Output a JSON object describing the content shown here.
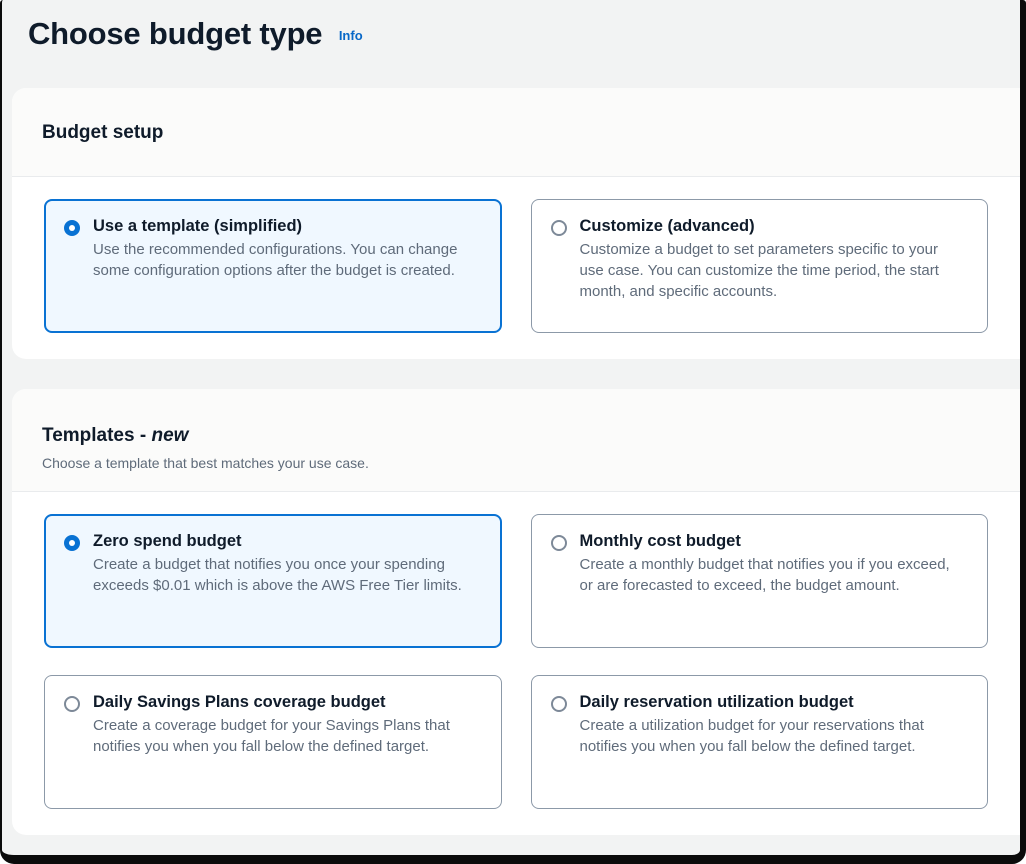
{
  "page": {
    "title": "Choose budget type",
    "info_label": "Info"
  },
  "colors": {
    "accent": "#0972d3",
    "selected_tile_bg": "#f0f8ff",
    "tile_border": "#8c99a8",
    "page_bg": "#f2f3f3",
    "info_link": "#0868c8",
    "description_text": "#5f6b7a"
  },
  "budget_setup": {
    "title": "Budget setup",
    "options": [
      {
        "label": "Use a template (simplified)",
        "description": "Use the recommended configurations. You can change some configuration options after the budget is created.",
        "selected": true
      },
      {
        "label": "Customize (advanced)",
        "description": "Customize a budget to set parameters specific to your use case. You can customize the time period, the start month, and specific accounts.",
        "selected": false
      }
    ]
  },
  "templates": {
    "title": "Templates -",
    "title_highlight": "new",
    "subtitle": "Choose a template that best matches your use case.",
    "options": [
      {
        "label": "Zero spend budget",
        "description": "Create a budget that notifies you once your spending exceeds $0.01 which is above the AWS Free Tier limits.",
        "selected": true
      },
      {
        "label": "Monthly cost budget",
        "description": "Create a monthly budget that notifies you if you exceed, or are forecasted to exceed, the budget amount.",
        "selected": false
      },
      {
        "label": "Daily Savings Plans coverage budget",
        "description": "Create a coverage budget for your Savings Plans that notifies you when you fall below the defined target.",
        "selected": false
      },
      {
        "label": "Daily reservation utilization budget",
        "description": "Create a utilization budget for your reservations that notifies you when you fall below the defined target.",
        "selected": false
      }
    ]
  }
}
